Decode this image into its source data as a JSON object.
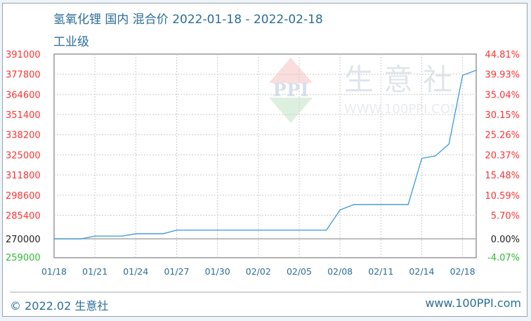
{
  "chart_data": {
    "type": "line",
    "title": "氢氧化锂 国内 混合价 2022-01-18 - 2022-02-18",
    "subtitle": "工业级",
    "x": [
      "01/18",
      "01/19",
      "01/20",
      "01/21",
      "01/22",
      "01/23",
      "01/24",
      "01/25",
      "01/26",
      "01/27",
      "01/28",
      "01/29",
      "01/30",
      "01/31",
      "02/01",
      "02/02",
      "02/03",
      "02/04",
      "02/05",
      "02/06",
      "02/07",
      "02/08",
      "02/09",
      "02/10",
      "02/11",
      "02/12",
      "02/13",
      "02/14",
      "02/15",
      "02/16",
      "02/17",
      "02/18"
    ],
    "values": [
      270000,
      270000,
      270000,
      271800,
      271800,
      271800,
      273300,
      273300,
      273300,
      275700,
      275700,
      275700,
      275700,
      275700,
      275700,
      275700,
      275700,
      275700,
      275700,
      275700,
      275700,
      288900,
      292400,
      292400,
      292400,
      292400,
      292400,
      322700,
      324300,
      332100,
      377100,
      380400
    ],
    "x_tick_labels": [
      "01/18",
      "01/21",
      "01/24",
      "01/27",
      "01/30",
      "02/02",
      "02/05",
      "02/08",
      "02/11",
      "02/14",
      "02/18"
    ],
    "y_left_ticks": [
      "391000",
      "377800",
      "364600",
      "351400",
      "338200",
      "325000",
      "311800",
      "298600",
      "285400",
      "270000",
      "259000"
    ],
    "y_right_ticks": [
      "44.81%",
      "39.93%",
      "35.04%",
      "30.15%",
      "25.26%",
      "20.37%",
      "15.48%",
      "10.59%",
      "5.70%",
      "0.00%",
      "-4.07%"
    ],
    "y_right_values": [
      44.81,
      39.93,
      35.04,
      30.15,
      25.26,
      20.37,
      15.48,
      10.59,
      5.7,
      0,
      -4.07
    ],
    "base_value": 270000,
    "ylim_percent": [
      -4.07,
      44.81
    ],
    "grid": true,
    "colors": {
      "line": "#3a9ad9",
      "positive": "#ff3333",
      "zero": "#222222",
      "negative": "#33bb33",
      "text": "#2b6e98"
    }
  },
  "watermark": {
    "logo_text": "PPI",
    "brand": "生意社",
    "url": "WWW.100PPI.COM"
  },
  "footer": {
    "copyright": "© 2022.02 生意社",
    "website": "www.100PPI.com"
  }
}
